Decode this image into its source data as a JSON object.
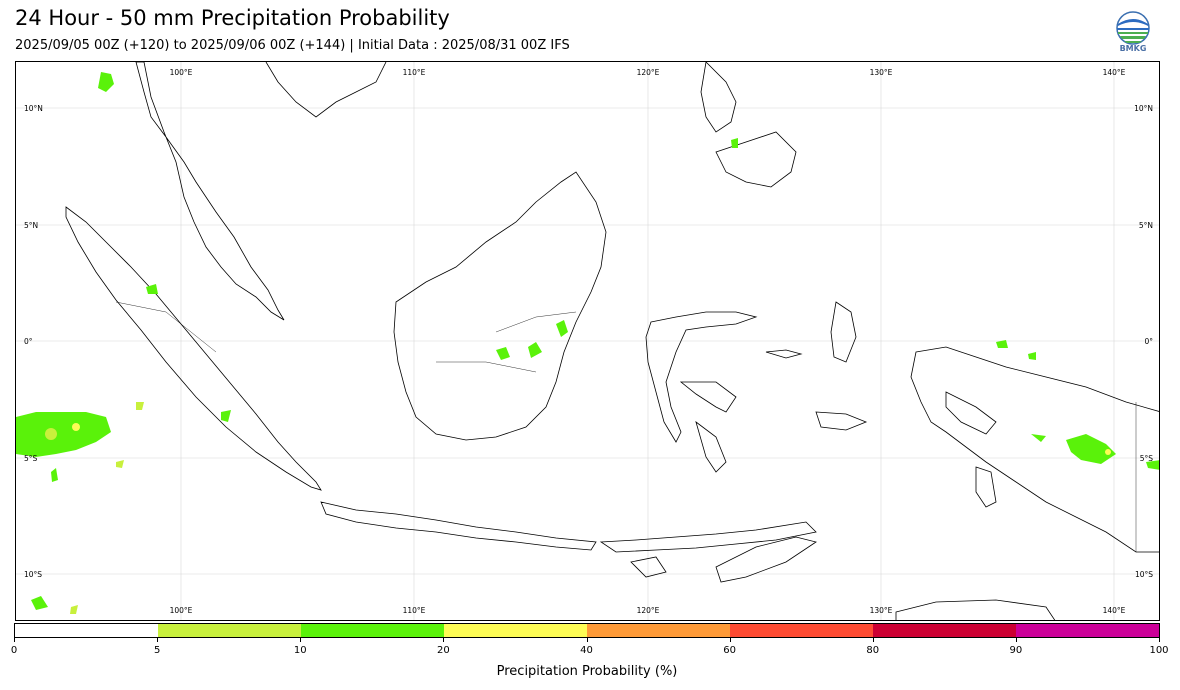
{
  "header": {
    "title": "24 Hour - 50 mm Precipitation Probability",
    "subtitle": "2025/09/05 00Z (+120) to 2025/09/06 00Z (+144) | Initial Data : 2025/08/31 00Z IFS",
    "logo_text": "BMKG"
  },
  "map": {
    "lon_labels_top": [
      "100°E",
      "110°E",
      "120°E",
      "130°E",
      "140°E"
    ],
    "lon_labels_bottom": [
      "100°E",
      "110°E",
      "120°E",
      "130°E",
      "140°E"
    ],
    "lat_labels_left": [
      "10°N",
      "5°N",
      "0°",
      "5°S",
      "10°S"
    ],
    "lat_labels_right": [
      "10°N",
      "5°N",
      "0°",
      "5°S",
      "10°S"
    ],
    "gridlines": true
  },
  "colorbar": {
    "label": "Precipitation Probability (%)",
    "ticks": [
      "0",
      "5",
      "10",
      "20",
      "40",
      "60",
      "80",
      "90",
      "100"
    ],
    "colors": [
      "#ffffff",
      "#c8f03c",
      "#5af20a",
      "#fdfc55",
      "#fe9a37",
      "#fe4b32",
      "#cc0033",
      "#cc0099"
    ]
  }
}
